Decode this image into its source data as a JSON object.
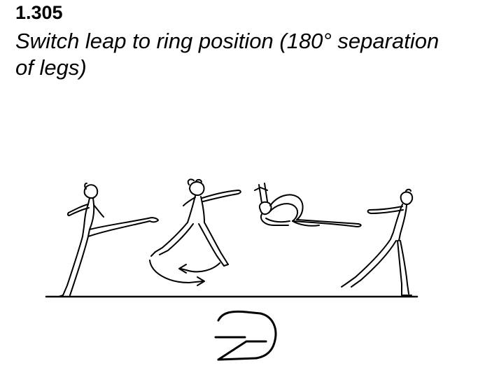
{
  "element": {
    "code": "1.305",
    "description": "Switch leap to ring position (180° separation of legs)"
  },
  "figure": {
    "line_color": "#000000",
    "background": "#ffffff",
    "icons": [
      "gymnast-standing-kick-icon",
      "gymnast-switch-mid-air-icon",
      "gymnast-ring-leap-icon",
      "gymnast-landing-icon",
      "switch-rotation-arrow-icon",
      "symbol-notation-icon"
    ]
  }
}
